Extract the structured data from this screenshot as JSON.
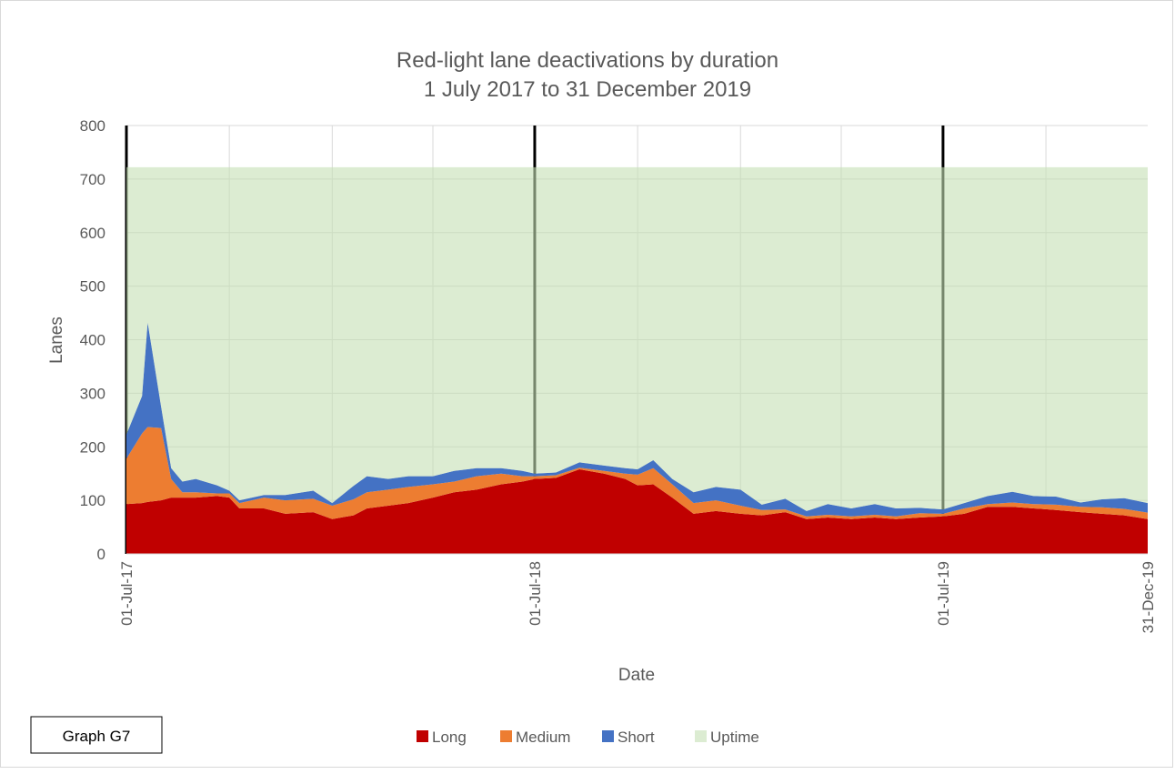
{
  "chart_data": {
    "type": "stacked_area",
    "title": "Red-light lane deactivations by duration",
    "subtitle": "1 July 2017 to 31 December 2019",
    "xlabel": "Date",
    "ylabel": "Lanes",
    "note": "Graph G7",
    "x": [
      "2017-07-01",
      "2017-07-15",
      "2017-07-20",
      "2017-08-01",
      "2017-08-10",
      "2017-08-20",
      "2017-09-01",
      "2017-09-20",
      "2017-10-01",
      "2017-10-10",
      "2017-11-01",
      "2017-11-20",
      "2017-12-15",
      "2018-01-01",
      "2018-01-20",
      "2018-02-01",
      "2018-02-20",
      "2018-03-10",
      "2018-04-01",
      "2018-04-20",
      "2018-05-10",
      "2018-06-01",
      "2018-06-20",
      "2018-07-01",
      "2018-07-20",
      "2018-08-10",
      "2018-09-01",
      "2018-09-20",
      "2018-10-01",
      "2018-10-15",
      "2018-11-01",
      "2018-11-20",
      "2018-12-10",
      "2019-01-01",
      "2019-01-20",
      "2019-02-10",
      "2019-03-01",
      "2019-03-20",
      "2019-04-10",
      "2019-05-01",
      "2019-05-20",
      "2019-06-10",
      "2019-07-01",
      "2019-07-20",
      "2019-08-10",
      "2019-09-01",
      "2019-09-20",
      "2019-10-10",
      "2019-11-01",
      "2019-11-20",
      "2019-12-10",
      "2019-12-31"
    ],
    "series": [
      {
        "name": "Long",
        "color": "#c00000",
        "values": [
          93,
          95,
          97,
          100,
          105,
          105,
          105,
          108,
          105,
          85,
          85,
          75,
          78,
          65,
          72,
          85,
          90,
          95,
          105,
          115,
          120,
          130,
          135,
          140,
          142,
          158,
          150,
          140,
          128,
          130,
          105,
          75,
          80,
          75,
          72,
          78,
          65,
          68,
          65,
          68,
          65,
          68,
          70,
          75,
          88,
          88,
          85,
          82,
          78,
          75,
          72,
          65
        ]
      },
      {
        "name": "Medium",
        "color": "#ed7d31",
        "values": [
          85,
          130,
          140,
          135,
          35,
          10,
          10,
          5,
          8,
          10,
          20,
          25,
          25,
          25,
          30,
          30,
          30,
          30,
          25,
          20,
          25,
          20,
          10,
          5,
          5,
          3,
          5,
          10,
          20,
          30,
          25,
          20,
          20,
          15,
          10,
          5,
          5,
          5,
          5,
          5,
          5,
          8,
          5,
          10,
          5,
          8,
          8,
          10,
          10,
          12,
          12,
          12
        ]
      },
      {
        "name": "Short",
        "color": "#4472c4",
        "values": [
          45,
          70,
          195,
          40,
          20,
          20,
          25,
          15,
          5,
          5,
          5,
          10,
          15,
          5,
          25,
          30,
          20,
          20,
          15,
          20,
          15,
          10,
          10,
          5,
          5,
          10,
          10,
          10,
          10,
          15,
          10,
          20,
          25,
          30,
          10,
          20,
          10,
          20,
          15,
          20,
          15,
          10,
          8,
          10,
          15,
          20,
          15,
          15,
          8,
          15,
          20,
          18
        ]
      },
      {
        "name": "Uptime",
        "color": "#c5e0b4",
        "opacity": 0.6,
        "values": [
          499,
          427,
          290,
          447,
          562,
          587,
          582,
          594,
          604,
          622,
          612,
          612,
          604,
          627,
          595,
          577,
          582,
          577,
          577,
          567,
          562,
          562,
          567,
          572,
          570,
          551,
          557,
          562,
          564,
          547,
          582,
          607,
          597,
          602,
          630,
          619,
          642,
          629,
          637,
          629,
          637,
          636,
          639,
          627,
          614,
          606,
          614,
          615,
          626,
          620,
          618,
          627
        ]
      }
    ],
    "xlim": [
      "2017-07-01",
      "2019-12-31"
    ],
    "xticks": [
      {
        "value": "2017-07-01",
        "label": "01-Jul-17"
      },
      {
        "value": "2018-07-01",
        "label": "01-Jul-18"
      },
      {
        "value": "2019-07-01",
        "label": "01-Jul-19"
      },
      {
        "value": "2019-12-31",
        "label": "31-Dec-19"
      }
    ],
    "xgrid": [
      "2017-10-01",
      "2018-01-01",
      "2018-04-01",
      "2018-10-01",
      "2019-01-01",
      "2019-04-01",
      "2019-10-01"
    ],
    "year_markers": [
      "2017-07-01",
      "2018-07-01",
      "2019-07-01"
    ],
    "ylim": [
      0,
      800
    ],
    "yticks": [
      0,
      100,
      200,
      300,
      400,
      500,
      600,
      700,
      800
    ],
    "grid": true,
    "legend": "bottom"
  }
}
